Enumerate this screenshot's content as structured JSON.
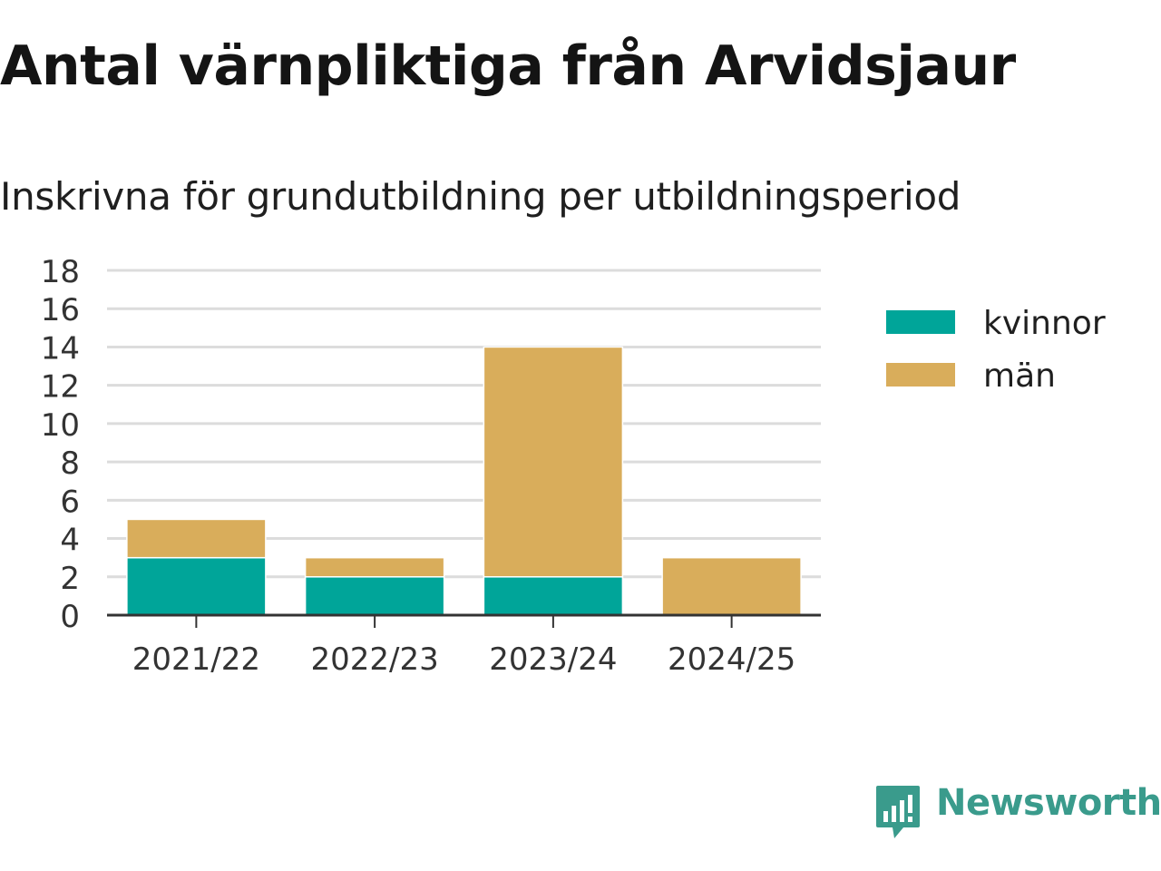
{
  "title": "Antal värnpliktiga från Arvidsjaur",
  "subtitle": "Inskrivna för grundutbildning per utbildningsperiod",
  "brand": "Newsworthy",
  "colors": {
    "kvinnor": "#00a599",
    "man": "#d9ad5b",
    "grid": "#dcdcdc",
    "axis": "#333333",
    "brand": "#3a9b8c"
  },
  "chart_data": {
    "type": "bar",
    "stacked": true,
    "categories": [
      "2021/22",
      "2022/23",
      "2023/24",
      "2024/25"
    ],
    "series": [
      {
        "name": "kvinnor",
        "values": [
          3,
          2,
          2,
          0
        ]
      },
      {
        "name": "män",
        "values": [
          2,
          1,
          12,
          3
        ]
      }
    ],
    "ylim": [
      0,
      18
    ],
    "yticks": [
      0,
      2,
      4,
      6,
      8,
      10,
      12,
      14,
      16,
      18
    ],
    "grid": true,
    "legend": "right",
    "xlabel": "",
    "ylabel": ""
  }
}
